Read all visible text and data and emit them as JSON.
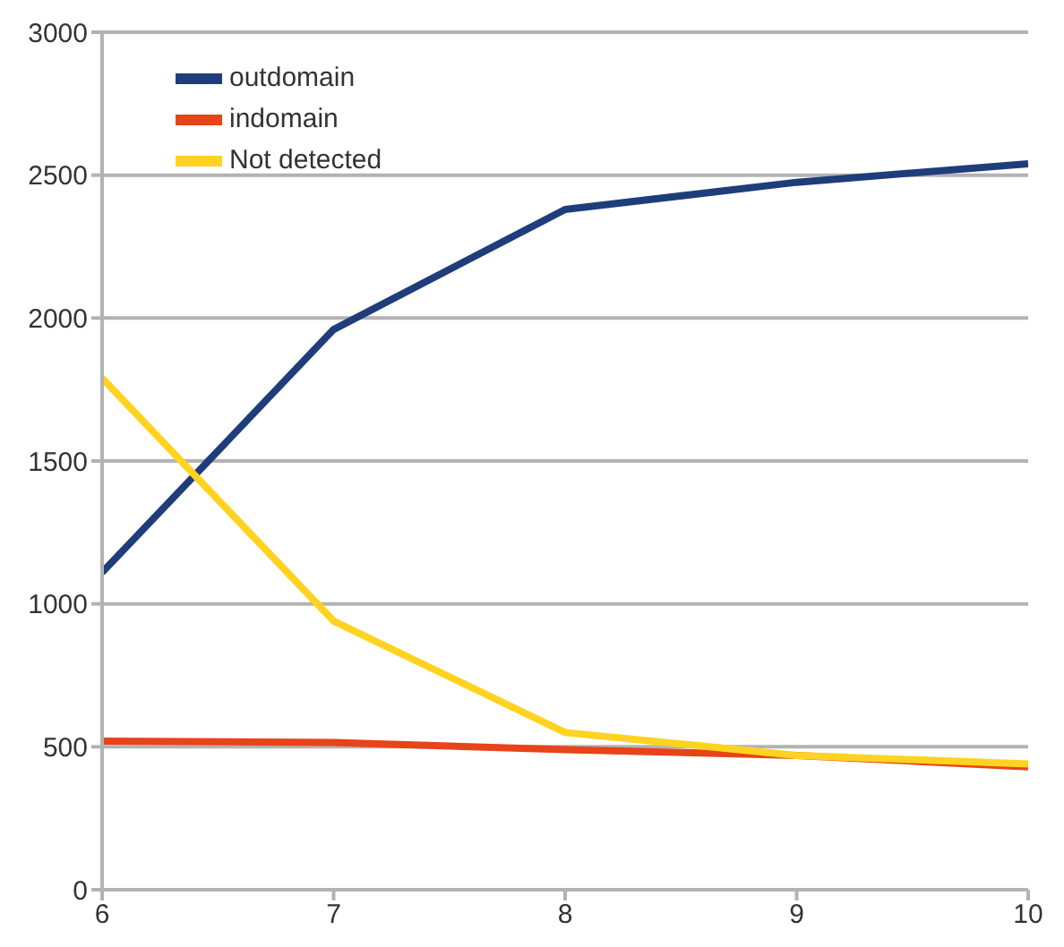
{
  "chart_data": {
    "type": "line",
    "x": [
      6,
      7,
      8,
      9,
      10
    ],
    "series": [
      {
        "name": "outdomain",
        "color": "#1f3d7a",
        "values": [
          1110,
          1960,
          2380,
          2475,
          2540
        ]
      },
      {
        "name": "indomain",
        "color": "#e8431a",
        "values": [
          520,
          515,
          490,
          470,
          430
        ]
      },
      {
        "name": "Not detected",
        "color": "#ffd320",
        "values": [
          1790,
          940,
          550,
          470,
          440
        ]
      }
    ],
    "xlim": [
      6,
      10
    ],
    "xticks": [
      6,
      7,
      8,
      9,
      10
    ],
    "ylim": [
      0,
      3000
    ],
    "yticks": [
      0,
      500,
      1000,
      1500,
      2000,
      2500,
      3000
    ],
    "grid": "y",
    "legend": "top left",
    "marker": "none",
    "line_style": "solid"
  }
}
